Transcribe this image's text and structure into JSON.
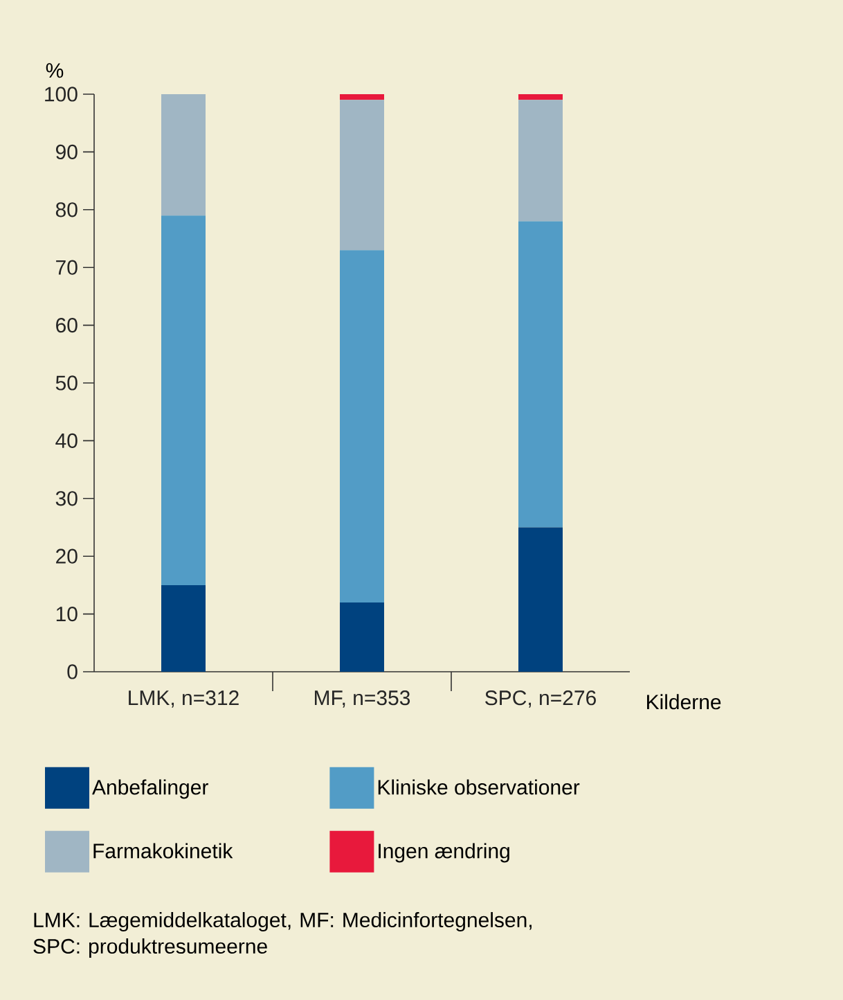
{
  "chart_data": {
    "type": "bar",
    "stacked": true,
    "ylabel": "%",
    "xlabel": "Kilderne",
    "categories": [
      "LMK, n=312",
      "MF, n=353",
      "SPC, n=276"
    ],
    "series": [
      {
        "name": "Anbefalinger",
        "color": "#00427f",
        "values": [
          15,
          12,
          25
        ]
      },
      {
        "name": "Kliniske observationer",
        "color": "#529cc6",
        "values": [
          64,
          61,
          53
        ]
      },
      {
        "name": "Farmakokinetik",
        "color": "#a0b6c4",
        "values": [
          21,
          26,
          21
        ]
      },
      {
        "name": "Ingen ændring",
        "color": "#e8193c",
        "values": [
          0,
          1,
          1
        ]
      }
    ],
    "ylim": [
      0,
      100
    ],
    "yticks": [
      0,
      10,
      20,
      30,
      40,
      50,
      60,
      70,
      80,
      90,
      100
    ],
    "grid": false,
    "legend": "bottom",
    "annotations": [
      "LMK: Lægemiddelkataloget, MF: Medicinfortegnelsen, SPC: produktresumeerne"
    ]
  }
}
